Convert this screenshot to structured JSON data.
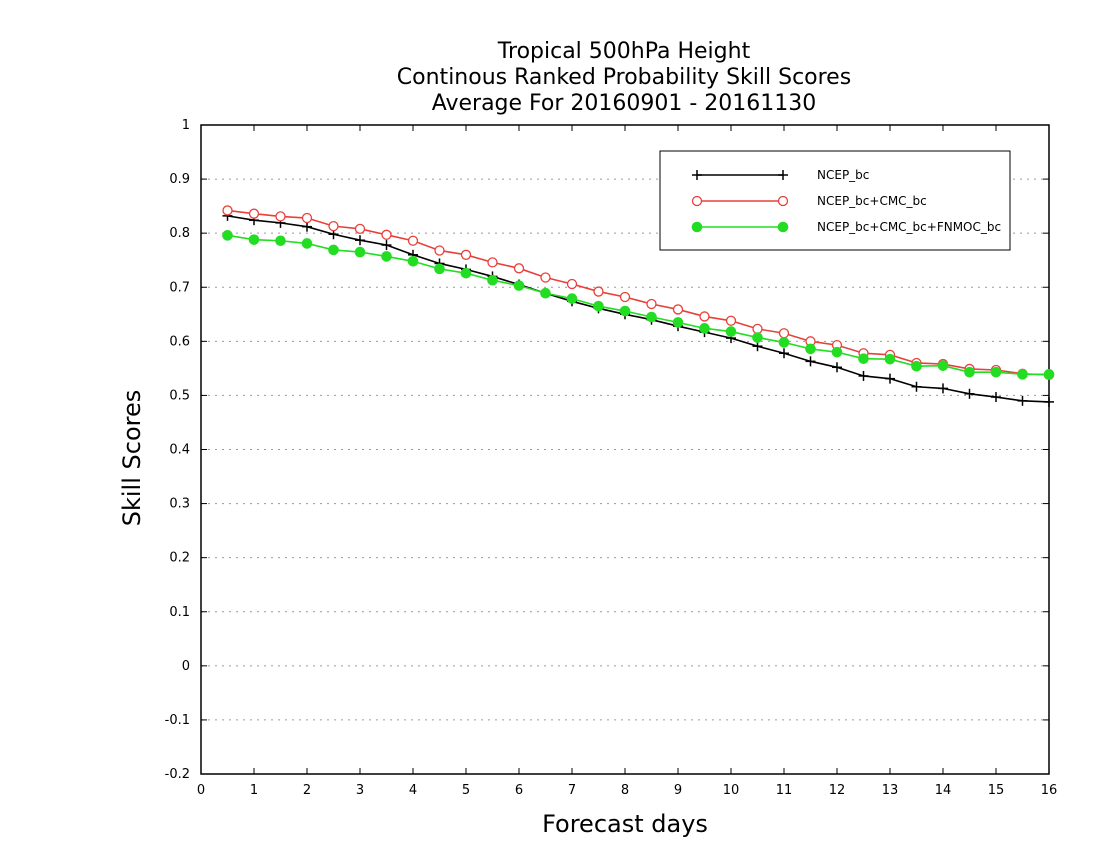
{
  "chart_data": {
    "type": "line",
    "title": [
      "Tropical 500hPa Height",
      "Continous Ranked Probability Skill Scores",
      "Average For 20160901 - 20161130"
    ],
    "xlabel": "Forecast days",
    "ylabel": "Skill Scores",
    "xlim": [
      0,
      16
    ],
    "ylim": [
      -0.2,
      1
    ],
    "xticks": [
      0,
      1,
      2,
      3,
      4,
      5,
      6,
      7,
      8,
      9,
      10,
      11,
      12,
      13,
      14,
      15,
      16
    ],
    "yticks": [
      -0.2,
      -0.1,
      0,
      0.1,
      0.2,
      0.3,
      0.4,
      0.5,
      0.6,
      0.7,
      0.8,
      0.9,
      1
    ],
    "ytick_labels": [
      "-0.2",
      "-0.1",
      "0",
      "0.1",
      "0.2",
      "0.3",
      "0.4",
      "0.5",
      "0.6",
      "0.7",
      "0.8",
      "0.9",
      "1"
    ],
    "grid": "horizontal dotted",
    "legend_position": "top-right",
    "x": [
      0.5,
      1,
      1.5,
      2,
      2.5,
      3,
      3.5,
      4,
      4.5,
      5,
      5.5,
      6,
      6.5,
      7,
      7.5,
      8,
      8.5,
      9,
      9.5,
      10,
      10.5,
      11,
      11.5,
      12,
      12.5,
      13,
      13.5,
      14,
      14.5,
      15,
      15.5,
      16
    ],
    "series": [
      {
        "name": "NCEP_bc",
        "color": "#000000",
        "marker": "plus",
        "values": [
          0.832,
          0.824,
          0.819,
          0.812,
          0.798,
          0.787,
          0.778,
          0.76,
          0.744,
          0.733,
          0.72,
          0.705,
          0.689,
          0.674,
          0.661,
          0.65,
          0.64,
          0.628,
          0.617,
          0.606,
          0.591,
          0.578,
          0.563,
          0.552,
          0.536,
          0.531,
          0.516,
          0.513,
          0.503,
          0.497,
          0.49,
          0.488
        ]
      },
      {
        "name": "NCEP_bc+CMC_bc",
        "color": "#e8403a",
        "marker": "open-circle",
        "values": [
          0.842,
          0.836,
          0.831,
          0.828,
          0.813,
          0.808,
          0.797,
          0.786,
          0.768,
          0.76,
          0.746,
          0.735,
          0.718,
          0.706,
          0.692,
          0.682,
          0.669,
          0.659,
          0.646,
          0.638,
          0.623,
          0.615,
          0.6,
          0.593,
          0.578,
          0.575,
          0.56,
          0.558,
          0.549,
          0.547,
          0.54,
          0.538
        ]
      },
      {
        "name": "NCEP_bc+CMC_bc+FNMOC_bc",
        "color": "#22dd22",
        "marker": "filled-circle",
        "values": [
          0.796,
          0.788,
          0.786,
          0.781,
          0.769,
          0.765,
          0.757,
          0.748,
          0.734,
          0.726,
          0.713,
          0.703,
          0.689,
          0.679,
          0.665,
          0.656,
          0.645,
          0.635,
          0.624,
          0.618,
          0.607,
          0.598,
          0.586,
          0.58,
          0.568,
          0.567,
          0.554,
          0.555,
          0.543,
          0.543,
          0.539,
          0.539
        ]
      }
    ]
  }
}
